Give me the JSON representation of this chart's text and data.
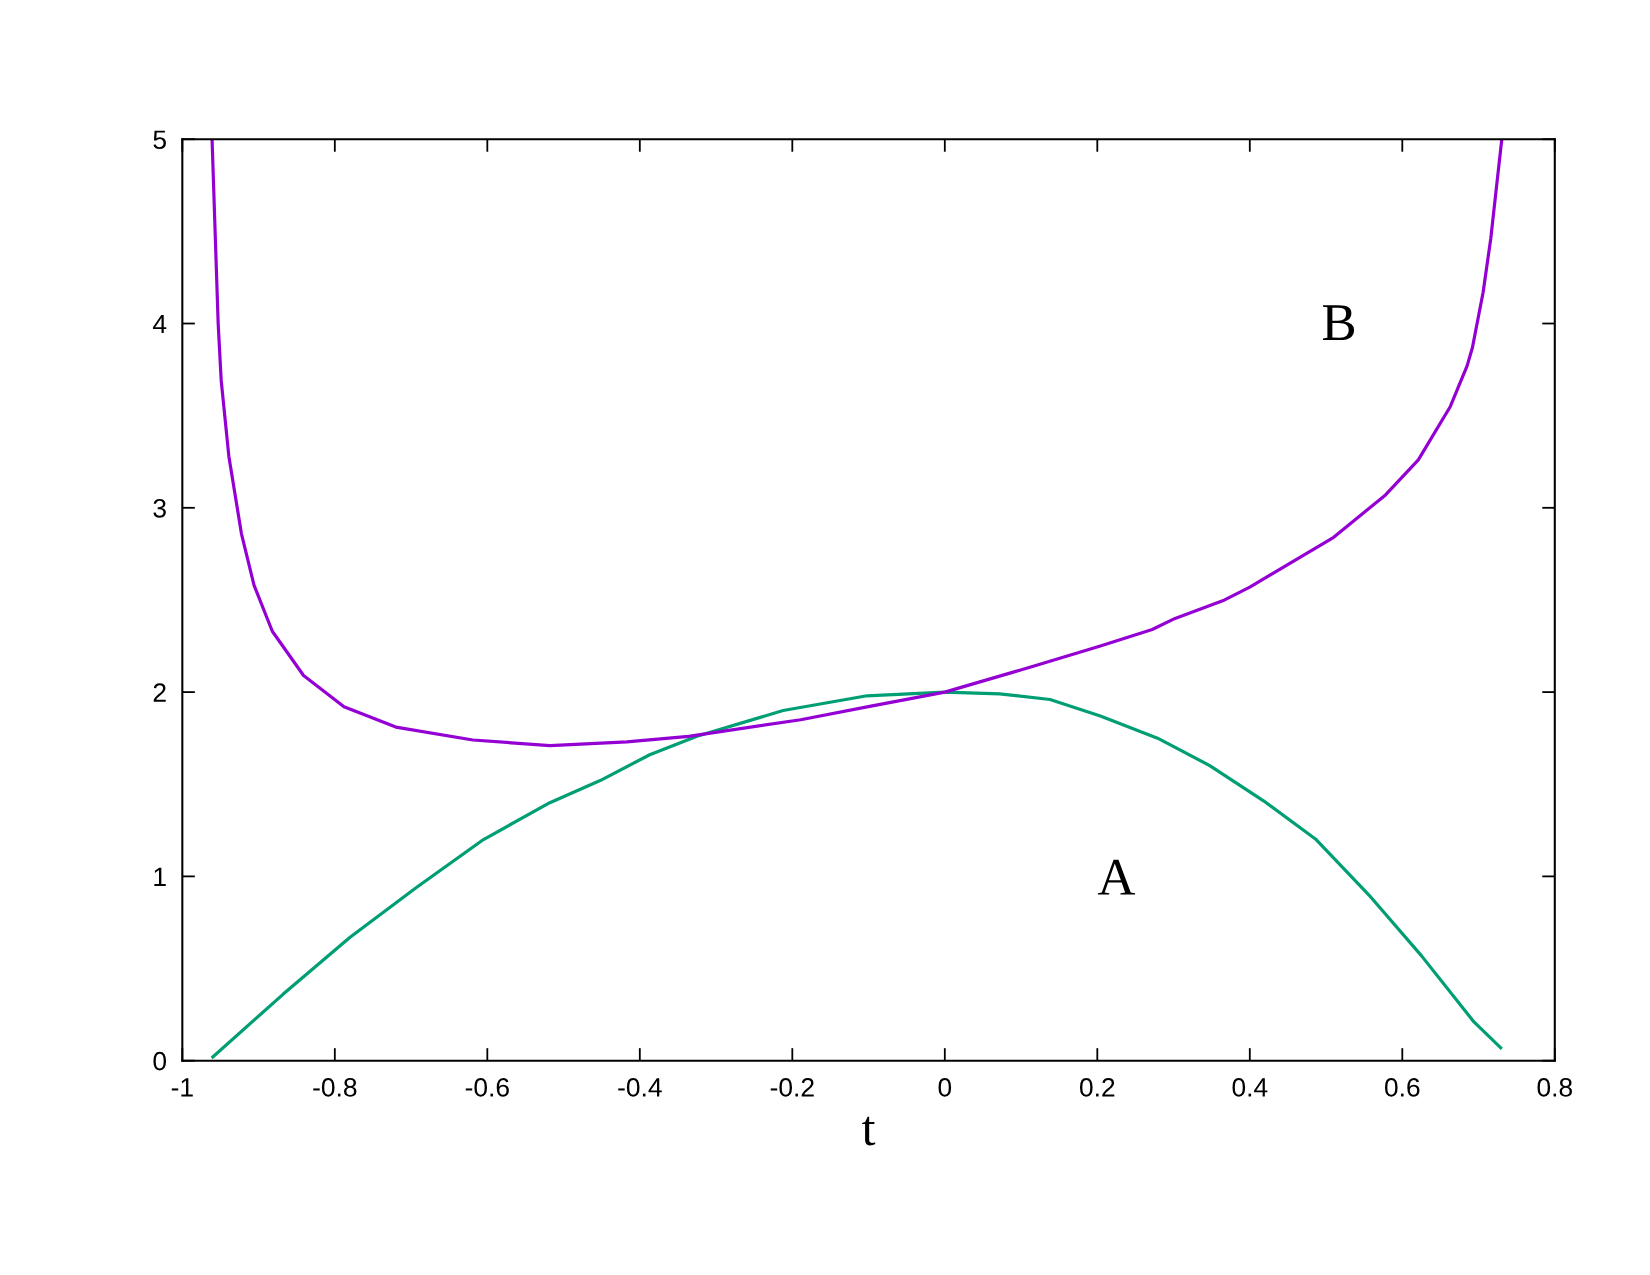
{
  "chart_data": {
    "type": "line",
    "xlabel": "t",
    "xlim": [
      -1,
      0.8
    ],
    "ylim": [
      0,
      5
    ],
    "xticks": [
      -1,
      -0.8,
      -0.6,
      -0.4,
      -0.2,
      0,
      0.2,
      0.4,
      0.6,
      0.8
    ],
    "yticks": [
      0,
      1,
      2,
      3,
      4,
      5
    ],
    "series": [
      {
        "name": "A",
        "color": "#009e73",
        "x": [
          -0.96,
          -0.868,
          -0.78,
          -0.693,
          -0.605,
          -0.518,
          -0.452,
          -0.387,
          -0.325,
          -0.212,
          -0.102,
          0,
          0.072,
          0.138,
          0.204,
          0.279,
          0.348,
          0.418,
          0.487,
          0.556,
          0.625,
          0.694,
          0.729
        ],
        "values": [
          0.02,
          0.36,
          0.67,
          0.94,
          1.2,
          1.4,
          1.52,
          1.66,
          1.76,
          1.9,
          1.98,
          2.0,
          1.99,
          1.96,
          1.87,
          1.75,
          1.6,
          1.41,
          1.2,
          0.9,
          0.57,
          0.21,
          0.07
        ]
      },
      {
        "name": "B",
        "color": "#9400d3",
        "x": [
          -0.961,
          -0.953,
          -0.949,
          -0.939,
          -0.9225,
          -0.906,
          -0.882,
          -0.841,
          -0.788,
          -0.72,
          -0.619,
          -0.518,
          -0.417,
          -0.336,
          -0.189,
          -0.102,
          0,
          0.116,
          0.204,
          0.272,
          0.302,
          0.367,
          0.4,
          0.51,
          0.578,
          0.621,
          0.663,
          0.685,
          0.692,
          0.706,
          0.716,
          0.7235,
          0.7305
        ],
        "values": [
          5.0,
          4.0,
          3.69,
          3.28,
          2.86,
          2.58,
          2.33,
          2.09,
          1.92,
          1.81,
          1.74,
          1.71,
          1.73,
          1.76,
          1.85,
          1.92,
          2.0,
          2.14,
          2.25,
          2.34,
          2.4,
          2.5,
          2.57,
          2.84,
          3.07,
          3.26,
          3.55,
          3.77,
          3.87,
          4.17,
          4.46,
          4.74,
          5.0
        ]
      }
    ]
  }
}
